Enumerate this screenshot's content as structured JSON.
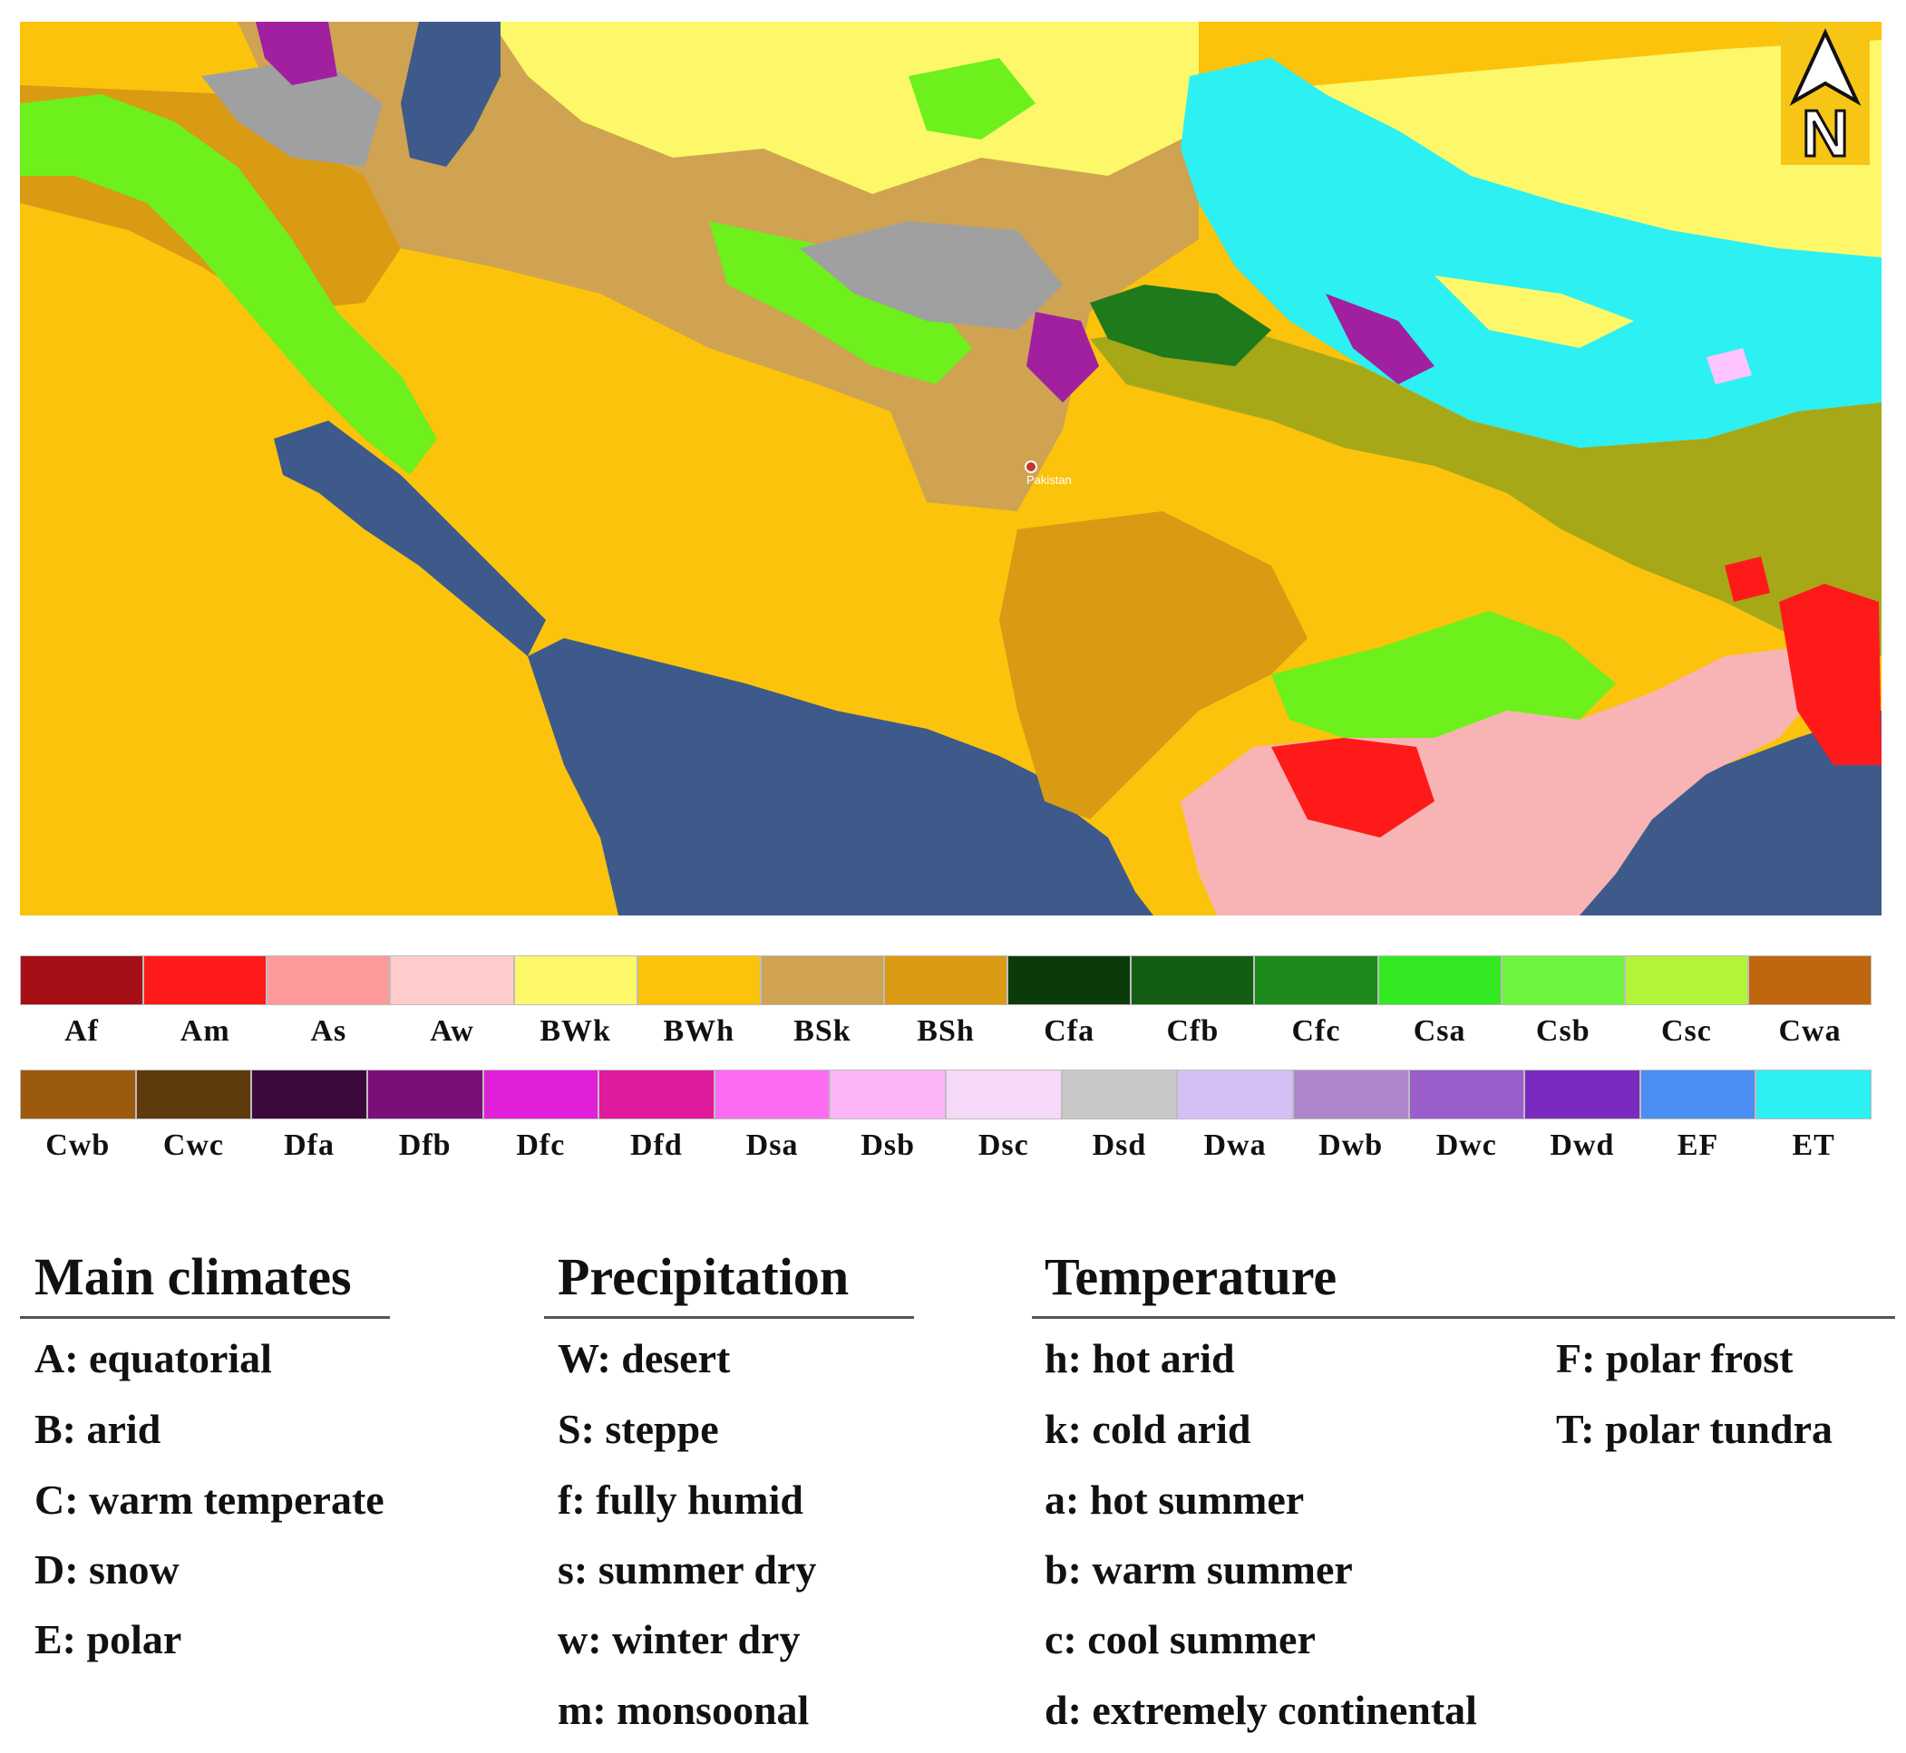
{
  "map": {
    "place_label": "Pakistan",
    "north_arrow_letter": "N",
    "colors": {
      "sea": "#3d5a8a",
      "bwh": "#fbc30b",
      "bwk": "#fdf86a",
      "bsk": "#cfa352",
      "bsh": "#d99a14",
      "cwa": "#a6a818",
      "csa": "#6df01c",
      "cfb": "#1f7a1c",
      "aw": "#f8b4b4",
      "am": "#ff1a1a",
      "et": "#2cf0f2",
      "dfb": "#a020a0",
      "dsd": "#a0a0a0",
      "dsc": "#ffc4ff",
      "north_box": "#f7c516"
    }
  },
  "legend_rows": [
    [
      {
        "code": "Af",
        "color": "#a50f15"
      },
      {
        "code": "Am",
        "color": "#ff1a1a"
      },
      {
        "code": "As",
        "color": "#fb9a99"
      },
      {
        "code": "Aw",
        "color": "#ffcccc"
      },
      {
        "code": "BWk",
        "color": "#fdf86a"
      },
      {
        "code": "BWh",
        "color": "#fbc30b"
      },
      {
        "code": "BSk",
        "color": "#cfa352"
      },
      {
        "code": "BSh",
        "color": "#d99a14"
      },
      {
        "code": "Cfa",
        "color": "#0c3b0a"
      },
      {
        "code": "Cfb",
        "color": "#135e12"
      },
      {
        "code": "Cfc",
        "color": "#1f8a1c"
      },
      {
        "code": "Csa",
        "color": "#33ea22"
      },
      {
        "code": "Csb",
        "color": "#6df43e"
      },
      {
        "code": "Csc",
        "color": "#b2f43a"
      },
      {
        "code": "Cwa",
        "color": "#c0660e"
      }
    ],
    [
      {
        "code": "Cwb",
        "color": "#9c5a0e"
      },
      {
        "code": "Cwc",
        "color": "#5f3a0d"
      },
      {
        "code": "Dfa",
        "color": "#3c0a3a"
      },
      {
        "code": "Dfb",
        "color": "#7a0f7a"
      },
      {
        "code": "Dfc",
        "color": "#e020d8"
      },
      {
        "code": "Dfd",
        "color": "#e01a9c"
      },
      {
        "code": "Dsa",
        "color": "#fb6cf2"
      },
      {
        "code": "Dsb",
        "color": "#fcb6f7"
      },
      {
        "code": "Dsc",
        "color": "#f6d8f8"
      },
      {
        "code": "Dsd",
        "color": "#c8c8c8"
      },
      {
        "code": "Dwa",
        "color": "#d6bff4"
      },
      {
        "code": "Dwb",
        "color": "#ad86cc"
      },
      {
        "code": "Dwc",
        "color": "#9a5dc9"
      },
      {
        "code": "Dwd",
        "color": "#7a2bbf"
      },
      {
        "code": "EF",
        "color": "#4a8ef2"
      },
      {
        "code": "ET",
        "color": "#2cf0f2"
      }
    ]
  ],
  "key": {
    "main_title": "Main climates",
    "main_items": [
      "A: equatorial",
      "B: arid",
      "C: warm temperate",
      "D: snow",
      "E: polar"
    ],
    "precip_title": "Precipitation",
    "precip_items": [
      "W: desert",
      "S: steppe",
      "f: fully humid",
      "s: summer dry",
      "w: winter dry",
      "m: monsoonal"
    ],
    "temp_title": "Temperature",
    "temp_items_left": [
      "h: hot arid",
      "k: cold arid",
      "a: hot summer",
      "b: warm summer",
      "c: cool summer",
      "d: extremely continental"
    ],
    "temp_items_right": [
      "F: polar frost",
      "T: polar tundra"
    ]
  }
}
